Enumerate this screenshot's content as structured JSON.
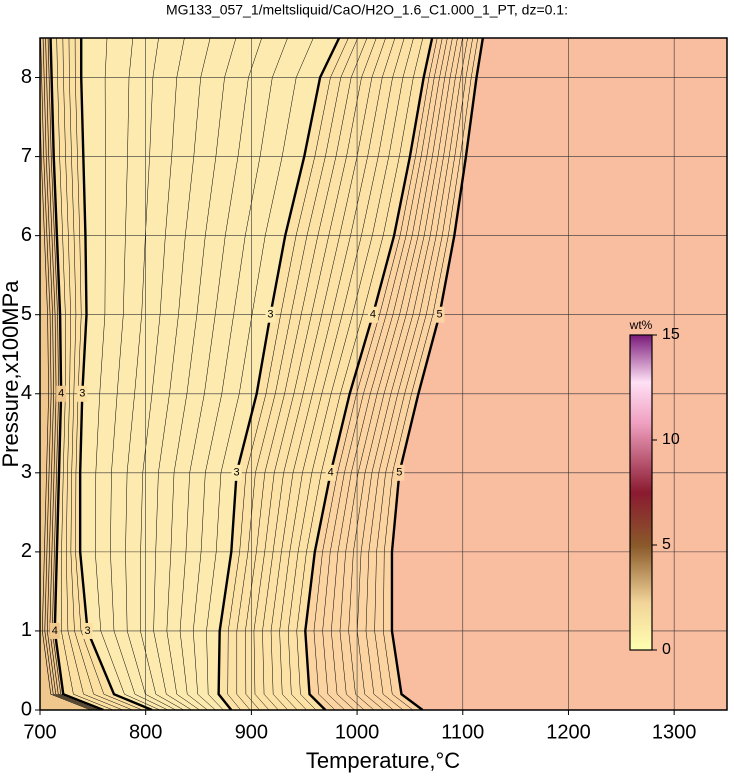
{
  "chart_data": {
    "type": "contour",
    "title": "MG133_057_1/meltsliquid/CaO/H2O_1.6_C1.000_1_PT, dz=0.1:",
    "x_label": "Temperature,°C",
    "y_label": "Pressure,x100MPa",
    "xlim": [
      700,
      1350
    ],
    "ylim": [
      0,
      8.5
    ],
    "xticks": [
      700,
      800,
      900,
      1000,
      1100,
      1200,
      1300
    ],
    "yticks": [
      0,
      1,
      2,
      3,
      4,
      5,
      6,
      7,
      8
    ],
    "grid": true,
    "background_color": "#f9bda0",
    "pressure": [
      0,
      0.2,
      1,
      2,
      3,
      4,
      5,
      6,
      7,
      8,
      8.5
    ],
    "contours": [
      {
        "level": 4,
        "fill": "#f0c88e",
        "x": [
          760,
          722,
          714,
          716,
          718,
          720,
          719,
          716,
          713,
          711,
          710
        ]
      },
      {
        "level": 3,
        "fill": "#fbe0a2",
        "x": [
          806,
          770,
          745,
          738,
          738,
          740,
          744,
          743,
          741,
          739,
          739
        ]
      },
      {
        "level": 3,
        "fill": "#fdeaaf",
        "x": [
          881,
          869,
          870,
          881,
          886,
          905,
          918,
          932,
          950,
          965,
          983
        ]
      },
      {
        "level": 4,
        "fill": "#fde2a6",
        "x": [
          970,
          955,
          951,
          960,
          975,
          993,
          1015,
          1035,
          1050,
          1063,
          1071
        ]
      },
      {
        "level": 5,
        "fill": "#fcd4a2",
        "x": [
          1062,
          1042,
          1033,
          1033,
          1040,
          1058,
          1078,
          1092,
          1103,
          1113,
          1119
        ]
      }
    ],
    "colorbar": {
      "label": "wt%",
      "lim": [
        0,
        15
      ],
      "ticks": [
        0,
        5,
        10,
        15
      ]
    }
  }
}
